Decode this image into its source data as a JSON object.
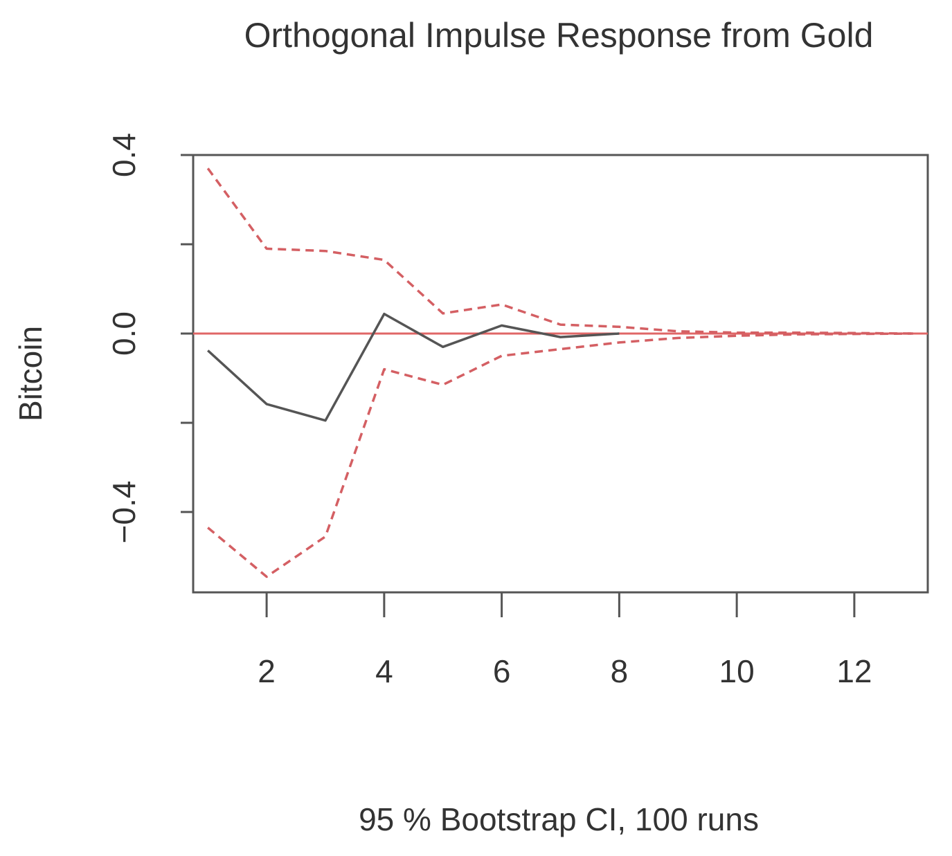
{
  "chart_data": {
    "type": "line",
    "title": "Orthogonal Impulse Response from Gold",
    "xlabel": "95 % Bootstrap CI,  100 runs",
    "ylabel": "Bitcoin",
    "xlim": [
      0.75,
      13.25
    ],
    "ylim": [
      -0.58,
      0.4
    ],
    "x_ticks": [
      2,
      4,
      6,
      8,
      10,
      12
    ],
    "x_tick_labels": [
      "2",
      "4",
      "6",
      "8",
      "10",
      "12"
    ],
    "y_ticks": [
      -0.4,
      -0.2,
      0.0,
      0.2,
      0.4
    ],
    "y_tick_labels": [
      "−0.4",
      "",
      "0.0",
      "",
      "0.4"
    ],
    "x": [
      1,
      2,
      3,
      4,
      5,
      6,
      7,
      8,
      9,
      10,
      11,
      12,
      13
    ],
    "zero_line": 0,
    "grid": false,
    "series": [
      {
        "style": "solid",
        "color": "#555555",
        "values": [
          -0.038,
          -0.158,
          -0.195,
          0.044,
          -0.03,
          0.018,
          -0.008,
          0.0,
          null,
          null,
          null,
          null,
          null
        ]
      },
      {
        "style": "dashed",
        "color": "#d45f63",
        "values": [
          0.37,
          0.19,
          0.185,
          0.165,
          0.045,
          0.065,
          0.02,
          0.015,
          0.005,
          0.002,
          0.002,
          0.001,
          0.0
        ]
      },
      {
        "style": "dashed",
        "color": "#d45f63",
        "values": [
          -0.435,
          -0.545,
          -0.455,
          -0.08,
          -0.115,
          -0.05,
          -0.035,
          -0.02,
          -0.01,
          -0.005,
          -0.002,
          -0.001,
          0.0
        ]
      }
    ]
  },
  "colors": {
    "zero_line": "#e06666",
    "axis": "#555555",
    "text": "#333333"
  }
}
